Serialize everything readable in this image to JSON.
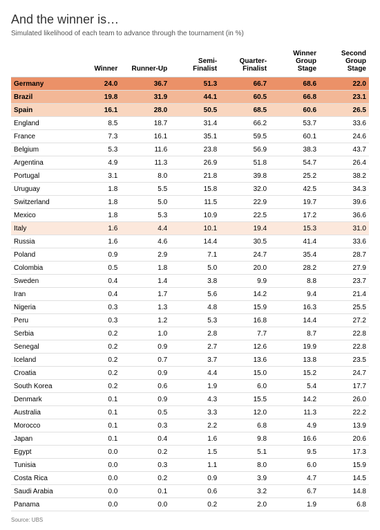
{
  "title": "And the winner is…",
  "subtitle": "Simulated likelihood of each team to advance through the tournament (in %)",
  "source": "Source: UBS",
  "columns": [
    "",
    "Winner",
    "Runner-Up",
    "Semi-\nFinalist",
    "Quarter-\nFinalist",
    "Winner\nGroup\nStage",
    "Second\nGroup\nStage"
  ],
  "highlight_colors": [
    "#eb9168",
    "#f3b796",
    "#f9d6bf",
    "#fce8dc"
  ],
  "font_size_body": 10,
  "font_size_title": 18,
  "font_size_subtitle": 10,
  "rows": [
    {
      "team": "Germany",
      "v": [
        "24.0",
        "36.7",
        "51.3",
        "66.7",
        "68.6",
        "22.0"
      ],
      "hl": 0,
      "bold": true
    },
    {
      "team": "Brazil",
      "v": [
        "19.8",
        "31.9",
        "44.1",
        "60.5",
        "66.8",
        "23.1"
      ],
      "hl": 1,
      "bold": true
    },
    {
      "team": "Spain",
      "v": [
        "16.1",
        "28.0",
        "50.5",
        "68.5",
        "60.6",
        "26.5"
      ],
      "hl": 2,
      "bold": true
    },
    {
      "team": "England",
      "v": [
        "8.5",
        "18.7",
        "31.4",
        "66.2",
        "53.7",
        "33.6"
      ]
    },
    {
      "team": "France",
      "v": [
        "7.3",
        "16.1",
        "35.1",
        "59.5",
        "60.1",
        "24.6"
      ]
    },
    {
      "team": "Belgium",
      "v": [
        "5.3",
        "11.6",
        "23.8",
        "56.9",
        "38.3",
        "43.7"
      ]
    },
    {
      "team": "Argentina",
      "v": [
        "4.9",
        "11.3",
        "26.9",
        "51.8",
        "54.7",
        "26.4"
      ]
    },
    {
      "team": "Portugal",
      "v": [
        "3.1",
        "8.0",
        "21.8",
        "39.8",
        "25.2",
        "38.2"
      ]
    },
    {
      "team": "Uruguay",
      "v": [
        "1.8",
        "5.5",
        "15.8",
        "32.0",
        "42.5",
        "34.3"
      ]
    },
    {
      "team": "Switzerland",
      "v": [
        "1.8",
        "5.0",
        "11.5",
        "22.9",
        "19.7",
        "39.6"
      ]
    },
    {
      "team": "Mexico",
      "v": [
        "1.8",
        "5.3",
        "10.9",
        "22.5",
        "17.2",
        "36.6"
      ]
    },
    {
      "team": "Italy",
      "v": [
        "1.6",
        "4.4",
        "10.1",
        "19.4",
        "15.3",
        "31.0"
      ],
      "hl": 3
    },
    {
      "team": "Russia",
      "v": [
        "1.6",
        "4.6",
        "14.4",
        "30.5",
        "41.4",
        "33.6"
      ]
    },
    {
      "team": "Poland",
      "v": [
        "0.9",
        "2.9",
        "7.1",
        "24.7",
        "35.4",
        "28.7"
      ]
    },
    {
      "team": "Colombia",
      "v": [
        "0.5",
        "1.8",
        "5.0",
        "20.0",
        "28.2",
        "27.9"
      ]
    },
    {
      "team": "Sweden",
      "v": [
        "0.4",
        "1.4",
        "3.8",
        "9.9",
        "8.8",
        "23.7"
      ]
    },
    {
      "team": "Iran",
      "v": [
        "0.4",
        "1.7",
        "5.6",
        "14.2",
        "9.4",
        "21.4"
      ]
    },
    {
      "team": "Nigeria",
      "v": [
        "0.3",
        "1.3",
        "4.8",
        "15.9",
        "16.3",
        "25.5"
      ]
    },
    {
      "team": "Peru",
      "v": [
        "0.3",
        "1.2",
        "5.3",
        "16.8",
        "14.4",
        "27.2"
      ]
    },
    {
      "team": "Serbia",
      "v": [
        "0.2",
        "1.0",
        "2.8",
        "7.7",
        "8.7",
        "22.8"
      ]
    },
    {
      "team": "Senegal",
      "v": [
        "0.2",
        "0.9",
        "2.7",
        "12.6",
        "19.9",
        "22.8"
      ]
    },
    {
      "team": "Iceland",
      "v": [
        "0.2",
        "0.7",
        "3.7",
        "13.6",
        "13.8",
        "23.5"
      ]
    },
    {
      "team": "Croatia",
      "v": [
        "0.2",
        "0.9",
        "4.4",
        "15.0",
        "15.2",
        "24.7"
      ]
    },
    {
      "team": "South Korea",
      "v": [
        "0.2",
        "0.6",
        "1.9",
        "6.0",
        "5.4",
        "17.7"
      ]
    },
    {
      "team": "Denmark",
      "v": [
        "0.1",
        "0.9",
        "4.3",
        "15.5",
        "14.2",
        "26.0"
      ]
    },
    {
      "team": "Australia",
      "v": [
        "0.1",
        "0.5",
        "3.3",
        "12.0",
        "11.3",
        "22.2"
      ]
    },
    {
      "team": "Morocco",
      "v": [
        "0.1",
        "0.3",
        "2.2",
        "6.8",
        "4.9",
        "13.9"
      ]
    },
    {
      "team": "Japan",
      "v": [
        "0.1",
        "0.4",
        "1.6",
        "9.8",
        "16.6",
        "20.6"
      ]
    },
    {
      "team": "Egypt",
      "v": [
        "0.0",
        "0.2",
        "1.5",
        "5.1",
        "9.5",
        "17.3"
      ]
    },
    {
      "team": "Tunisia",
      "v": [
        "0.0",
        "0.3",
        "1.1",
        "8.0",
        "6.0",
        "15.9"
      ]
    },
    {
      "team": "Costa Rica",
      "v": [
        "0.0",
        "0.2",
        "0.9",
        "3.9",
        "4.7",
        "14.5"
      ]
    },
    {
      "team": "Saudi Arabia",
      "v": [
        "0.0",
        "0.1",
        "0.6",
        "3.2",
        "6.7",
        "14.8"
      ]
    },
    {
      "team": "Panama",
      "v": [
        "0.0",
        "0.0",
        "0.2",
        "2.0",
        "1.9",
        "6.8"
      ]
    }
  ]
}
